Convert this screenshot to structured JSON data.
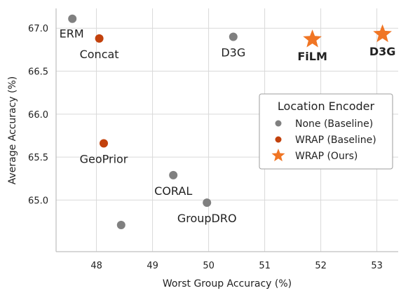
{
  "chart_data": {
    "type": "scatter",
    "xlabel": "Worst Group Accuracy (%)",
    "ylabel": "Average Accuracy (%)",
    "xlim": [
      47.28,
      53.38
    ],
    "ylim": [
      64.4,
      67.23
    ],
    "xticks": [
      48,
      49,
      50,
      51,
      52,
      53
    ],
    "yticks": [
      65.0,
      65.5,
      66.0,
      66.5,
      67.0
    ],
    "ytick_labels": [
      "65.0",
      "65.5",
      "66.0",
      "66.5",
      "67.0"
    ],
    "grid": true,
    "legend_position": "center-right",
    "legend": {
      "title": "Location Encoder",
      "entries": [
        {
          "label": "None (Baseline)",
          "color": "#808080",
          "marker": "circle"
        },
        {
          "label": "WRAP (Baseline)",
          "color": "#c2410c",
          "marker": "circle"
        },
        {
          "label": "WRAP (Ours)",
          "color": "#f07524",
          "marker": "star"
        }
      ]
    },
    "points": [
      {
        "x": 47.57,
        "y": 67.11,
        "group": "None (Baseline)",
        "label": "ERM",
        "label_pos": "below-left",
        "bold": false
      },
      {
        "x": 48.05,
        "y": 66.88,
        "group": "WRAP (Baseline)",
        "label": "Concat",
        "label_pos": "below",
        "bold": false
      },
      {
        "x": 50.44,
        "y": 66.9,
        "group": "None (Baseline)",
        "label": "D3G",
        "label_pos": "below",
        "bold": false
      },
      {
        "x": 51.85,
        "y": 66.87,
        "group": "WRAP (Ours)",
        "label": "FiLM",
        "label_pos": "below",
        "bold": true
      },
      {
        "x": 53.1,
        "y": 66.93,
        "group": "WRAP (Ours)",
        "label": "D3G",
        "label_pos": "below",
        "bold": true
      },
      {
        "x": 48.13,
        "y": 65.66,
        "group": "WRAP (Baseline)",
        "label": "GeoPrior",
        "label_pos": "below",
        "bold": false
      },
      {
        "x": 49.37,
        "y": 65.29,
        "group": "None (Baseline)",
        "label": "CORAL",
        "label_pos": "below",
        "bold": false
      },
      {
        "x": 49.97,
        "y": 64.97,
        "group": "None (Baseline)",
        "label": "GroupDRO",
        "label_pos": "below",
        "bold": false
      },
      {
        "x": 48.44,
        "y": 64.71,
        "group": "None (Baseline)",
        "label": "",
        "label_pos": "below",
        "bold": false
      }
    ]
  }
}
